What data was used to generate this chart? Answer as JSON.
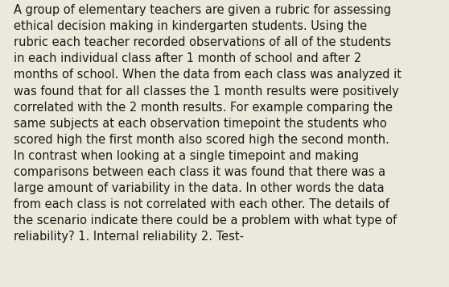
{
  "background_color": "#ede8dc",
  "text_color": "#1a1a1a",
  "font_size": 10.5,
  "font_family": "DejaVu Sans",
  "lines": [
    "A group of elementary teachers are given a rubric for assessing",
    "ethical decision making in kindergarten students. Using the",
    "rubric each teacher recorded observations of all of the students",
    "in each individual class after 1 month of school and after 2",
    "months of school. When the data from each class was analyzed it",
    "was found that for all classes the 1 month results were positively",
    "correlated with the 2 month results. For example comparing the",
    "same subjects at each observation timepoint the students who",
    "scored high the first month also scored high the second month.",
    "In contrast when looking at a single timepoint and making",
    "comparisons between each class it was found that there was a",
    "large amount of variability in the data. In other words the data",
    "from each class is not correlated with each other. The details of",
    "the scenario indicate there could be a problem with what type of",
    "reliability? 1. Internal reliability 2. Test-"
  ]
}
